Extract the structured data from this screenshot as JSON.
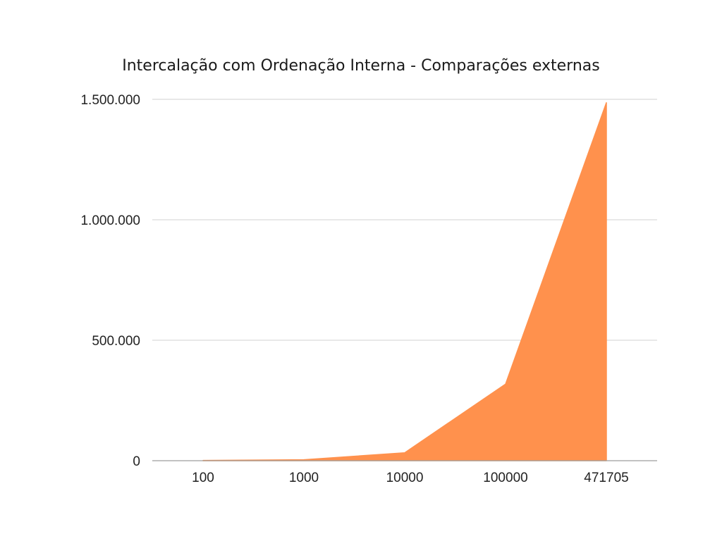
{
  "chart_data": {
    "type": "area",
    "title": "Intercalação com Ordenação Interna - Comparações externas",
    "xlabel": "",
    "ylabel": "",
    "categories": [
      "100",
      "1000",
      "10000",
      "100000",
      "471705"
    ],
    "series": [
      {
        "values": [
          1000,
          4000,
          33000,
          318000,
          1486000
        ]
      }
    ],
    "ylim": [
      0,
      1500000
    ],
    "y_ticks": [
      {
        "value": 0,
        "label": "0"
      },
      {
        "value": 500000,
        "label": "500.000"
      },
      {
        "value": 1000000,
        "label": "1.000.000"
      },
      {
        "value": 1500000,
        "label": "1.500.000"
      }
    ],
    "grid": true,
    "legend": "none",
    "colors": {
      "area_fill": "#ff914d",
      "area_stroke": "#ff914d",
      "grid": "#d0d0d0",
      "baseline": "#9e9e9e"
    }
  }
}
